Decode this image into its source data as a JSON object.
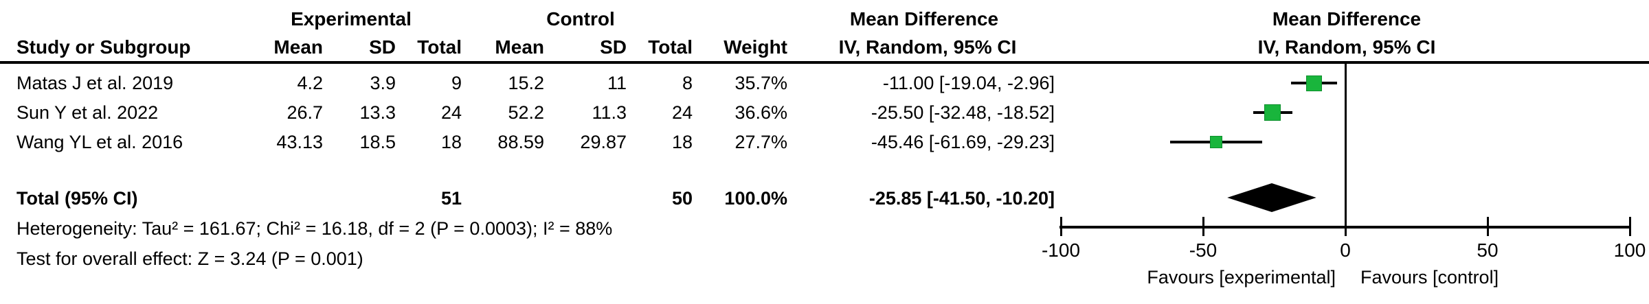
{
  "table": {
    "group1_header": "Experimental",
    "group2_header": "Control",
    "md_header": "Mean Difference",
    "method_header": "IV, Random, 95% CI",
    "cols": {
      "study": "Study or Subgroup",
      "mean": "Mean",
      "sd": "SD",
      "total": "Total",
      "weight": "Weight"
    }
  },
  "studies": [
    {
      "name": "Matas J et al. 2019",
      "exp_mean": "4.2",
      "exp_sd": "3.9",
      "exp_total": "9",
      "ctl_mean": "15.2",
      "ctl_sd": "11",
      "ctl_total": "8",
      "weight": "35.7%",
      "ci_text": "-11.00 [-19.04, -2.96]"
    },
    {
      "name": "Sun Y et al. 2022",
      "exp_mean": "26.7",
      "exp_sd": "13.3",
      "exp_total": "24",
      "ctl_mean": "52.2",
      "ctl_sd": "11.3",
      "ctl_total": "24",
      "weight": "36.6%",
      "ci_text": "-25.50 [-32.48, -18.52]"
    },
    {
      "name": "Wang YL et al. 2016",
      "exp_mean": "43.13",
      "exp_sd": "18.5",
      "exp_total": "18",
      "ctl_mean": "88.59",
      "ctl_sd": "29.87",
      "ctl_total": "18",
      "weight": "27.7%",
      "ci_text": "-45.46 [-61.69, -29.23]"
    }
  ],
  "total_row": {
    "label": "Total (95% CI)",
    "exp_total": "51",
    "ctl_total": "50",
    "weight": "100.0%",
    "ci_text": "-25.85 [-41.50, -10.20]"
  },
  "footnotes": {
    "heterogeneity": "Heterogeneity: Tau² = 161.67; Chi² = 16.18, df = 2 (P = 0.0003); I² = 88%",
    "overall_effect": "Test for overall effect: Z = 3.24 (P = 0.001)"
  },
  "chart_data": {
    "type": "forest",
    "effect_measure": "Mean Difference",
    "method": "IV, Random, 95% CI",
    "axis": {
      "min": -100,
      "max": 100,
      "ticks": [
        -100,
        -50,
        0,
        50,
        100
      ]
    },
    "favours_left": "Favours [experimental]",
    "favours_right": "Favours [control]",
    "marker_color": "#19b53c",
    "marker_border_color": "#0e8f2d",
    "diamond_color": "#000000",
    "studies": [
      {
        "name": "Matas J et al. 2019",
        "md": -11.0,
        "ci_low": -19.04,
        "ci_high": -2.96,
        "weight_pct": 35.7
      },
      {
        "name": "Sun Y et al. 2022",
        "md": -25.5,
        "ci_low": -32.48,
        "ci_high": -18.52,
        "weight_pct": 36.6
      },
      {
        "name": "Wang YL et al. 2016",
        "md": -45.46,
        "ci_low": -61.69,
        "ci_high": -29.23,
        "weight_pct": 27.7
      }
    ],
    "total": {
      "md": -25.85,
      "ci_low": -41.5,
      "ci_high": -10.2
    }
  }
}
